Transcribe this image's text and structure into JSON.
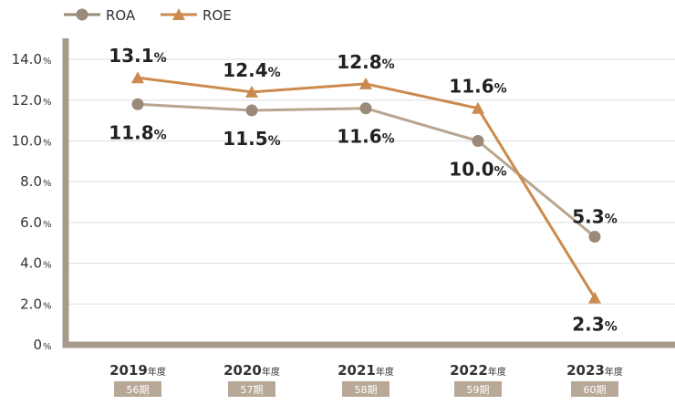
{
  "legend": [
    {
      "label": "ROA",
      "color": "#9a8a78",
      "marker": "circle"
    },
    {
      "label": "ROE",
      "color": "#cc8a4e",
      "marker": "triangle"
    }
  ],
  "chart_data": {
    "type": "line",
    "categories": [
      "2019",
      "2020",
      "2021",
      "2022",
      "2023"
    ],
    "category_suffix": "年度",
    "periods": [
      "56期",
      "57期",
      "58期",
      "59期",
      "60期"
    ],
    "series": [
      {
        "name": "ROA",
        "values": [
          11.8,
          11.5,
          11.6,
          10.0,
          5.3
        ],
        "labels": [
          "11.8",
          "11.5",
          "11.6",
          "10.0",
          "5.3"
        ],
        "color": "#b8a590",
        "marker_color": "#9a8a78"
      },
      {
        "name": "ROE",
        "values": [
          13.1,
          12.4,
          12.8,
          11.6,
          2.3
        ],
        "labels": [
          "13.1",
          "12.4",
          "12.8",
          "11.6",
          "2.3"
        ],
        "color": "#cc8a4e",
        "marker_color": "#cc8a4e"
      }
    ],
    "ylim": [
      0,
      15
    ],
    "yticks": [
      {
        "value": 0,
        "label": "0"
      },
      {
        "value": 2,
        "label": "2.0"
      },
      {
        "value": 4,
        "label": "4.0"
      },
      {
        "value": 6,
        "label": "6.0"
      },
      {
        "value": 8,
        "label": "8.0"
      },
      {
        "value": 10,
        "label": "10.0"
      },
      {
        "value": 12,
        "label": "12.0"
      },
      {
        "value": 14,
        "label": "14.0"
      }
    ],
    "unit": "%",
    "grid": true,
    "legend_position": "top-left",
    "axis_color": "#a89a8a",
    "grid_color": "#e2e2e2",
    "period_box_color": "#b8a898"
  }
}
